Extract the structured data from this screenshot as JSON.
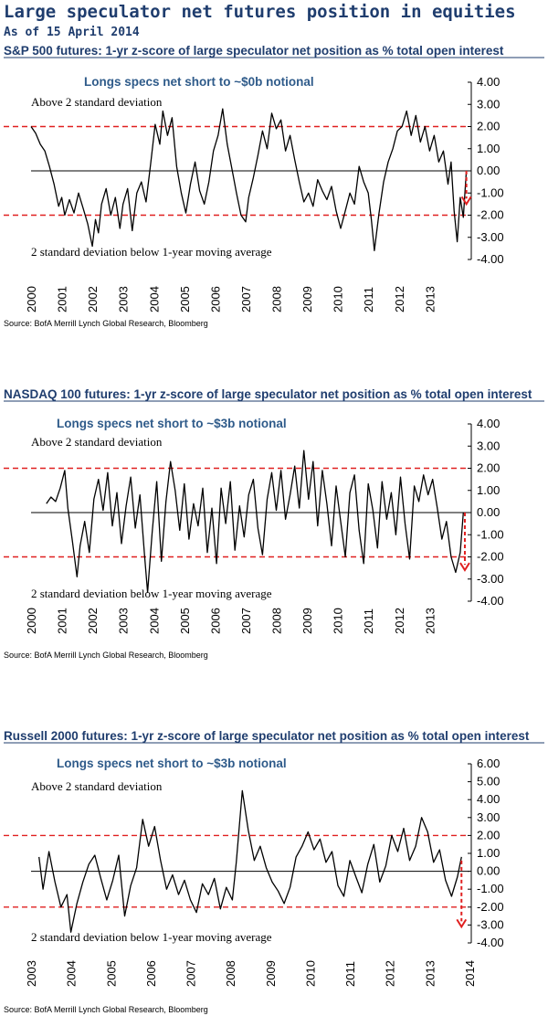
{
  "header": {
    "title": "Large speculator net futures position in equities",
    "subtitle": "As of 15 April 2014"
  },
  "chart_data": [
    {
      "type": "line",
      "title": "S&P 500 futures: 1-yr z-score of large speculator net position as % total open interest",
      "callout": "Longs specs net short to ~$0b notional",
      "annotation_top": "Above 2 standard deviation",
      "annotation_bottom": "2 standard deviation below 1-year moving average",
      "source": "Source: BofA Merrill Lynch Global Research, Bloomberg",
      "ylim": [
        -4,
        4
      ],
      "yticks": [
        "4.00",
        "3.00",
        "2.00",
        "1.00",
        "0.00",
        "-1.00",
        "-2.00",
        "-3.00",
        "-4.00"
      ],
      "xlim": [
        2000,
        2014.3
      ],
      "xticks": [
        "2000",
        "2001",
        "2002",
        "2003",
        "2004",
        "2005",
        "2006",
        "2007",
        "2008",
        "2009",
        "2010",
        "2011",
        "2012",
        "2013"
      ],
      "threshold_lines": [
        2,
        -2
      ],
      "arrow": {
        "from": [
          2014.2,
          0
        ],
        "to": [
          2014.2,
          -1.5
        ]
      },
      "series": [
        {
          "x": [
            2000.0,
            2000.15,
            2000.3,
            2000.45,
            2000.6,
            2000.75,
            2000.9,
            2001.0,
            2001.1,
            2001.25,
            2001.4,
            2001.55,
            2001.7,
            2001.85,
            2002.0,
            2002.1,
            2002.2,
            2002.3,
            2002.45,
            2002.6,
            2002.75,
            2002.9,
            2003.0,
            2003.15,
            2003.3,
            2003.45,
            2003.6,
            2003.75,
            2003.9,
            2004.05,
            2004.2,
            2004.3,
            2004.45,
            2004.6,
            2004.75,
            2004.9,
            2005.05,
            2005.2,
            2005.35,
            2005.5,
            2005.65,
            2005.8,
            2005.95,
            2006.1,
            2006.25,
            2006.4,
            2006.55,
            2006.7,
            2006.85,
            2007.0,
            2007.1,
            2007.25,
            2007.4,
            2007.55,
            2007.7,
            2007.85,
            2008.0,
            2008.15,
            2008.3,
            2008.45,
            2008.6,
            2008.75,
            2008.9,
            2009.05,
            2009.2,
            2009.35,
            2009.5,
            2009.65,
            2009.8,
            2009.95,
            2010.1,
            2010.25,
            2010.4,
            2010.55,
            2010.7,
            2010.85,
            2011.0,
            2011.1,
            2011.2,
            2011.35,
            2011.5,
            2011.65,
            2011.8,
            2011.95,
            2012.1,
            2012.25,
            2012.4,
            2012.55,
            2012.7,
            2012.85,
            2013.0,
            2013.15,
            2013.3,
            2013.45,
            2013.6,
            2013.7,
            2013.8,
            2013.9,
            2014.0,
            2014.1,
            2014.2
          ],
          "y": [
            2.0,
            1.7,
            1.2,
            0.9,
            0.2,
            -0.6,
            -1.6,
            -1.2,
            -2.0,
            -1.3,
            -1.9,
            -1.0,
            -1.7,
            -2.4,
            -3.4,
            -2.2,
            -2.8,
            -1.5,
            -0.8,
            -2.0,
            -1.2,
            -2.6,
            -1.5,
            -0.8,
            -2.7,
            -1.0,
            -0.5,
            -1.4,
            0.3,
            2.1,
            1.2,
            2.7,
            1.6,
            2.4,
            0.2,
            -1.0,
            -1.9,
            -0.6,
            0.4,
            -0.9,
            -1.5,
            -0.5,
            0.9,
            1.6,
            2.8,
            1.2,
            0.1,
            -1.0,
            -2.0,
            -2.3,
            -1.2,
            -0.3,
            0.7,
            1.8,
            1.0,
            2.6,
            1.9,
            2.3,
            0.9,
            1.6,
            0.5,
            -0.5,
            -1.4,
            -1.0,
            -1.6,
            -0.4,
            -0.9,
            -1.3,
            -0.7,
            -1.8,
            -2.6,
            -1.8,
            -1.0,
            -1.5,
            0.2,
            -0.5,
            -1.0,
            -2.2,
            -3.6,
            -1.9,
            -0.5,
            0.4,
            1.0,
            1.8,
            2.0,
            2.7,
            1.6,
            2.5,
            1.3,
            2.0,
            0.9,
            1.6,
            0.4,
            0.9,
            -0.6,
            0.4,
            -1.8,
            -3.2,
            -1.2,
            -2.1,
            0.0
          ]
        }
      ]
    },
    {
      "type": "line",
      "title": "NASDAQ 100 futures: 1-yr z-score of large speculator net position as % total open interest",
      "callout": "Longs specs net short to ~$3b notional",
      "annotation_top": "Above 2 standard deviation",
      "annotation_bottom": "2 standard deviation below 1-year moving average",
      "source": "Source: BofA Merrill Lynch Global Research, Bloomberg",
      "ylim": [
        -4,
        4
      ],
      "yticks": [
        "4.00",
        "3.00",
        "2.00",
        "1.00",
        "0.00",
        "-1.00",
        "-2.00",
        "-3.00",
        "-4.00"
      ],
      "xlim": [
        2000,
        2014.3
      ],
      "xticks": [
        "2000",
        "2001",
        "2002",
        "2003",
        "2004",
        "2005",
        "2006",
        "2007",
        "2008",
        "2009",
        "2010",
        "2011",
        "2012",
        "2013"
      ],
      "threshold_lines": [
        2,
        -2
      ],
      "arrow": {
        "from": [
          2014.15,
          0
        ],
        "to": [
          2014.15,
          -2.6
        ]
      },
      "series": [
        {
          "x": [
            2000.5,
            2000.65,
            2000.8,
            2000.95,
            2001.1,
            2001.2,
            2001.35,
            2001.5,
            2001.6,
            2001.75,
            2001.9,
            2002.05,
            2002.2,
            2002.35,
            2002.5,
            2002.65,
            2002.8,
            2002.95,
            2003.1,
            2003.25,
            2003.4,
            2003.55,
            2003.7,
            2003.8,
            2003.95,
            2004.1,
            2004.25,
            2004.4,
            2004.55,
            2004.7,
            2004.85,
            2005.0,
            2005.15,
            2005.3,
            2005.45,
            2005.6,
            2005.75,
            2005.9,
            2006.05,
            2006.2,
            2006.35,
            2006.5,
            2006.65,
            2006.8,
            2006.95,
            2007.1,
            2007.25,
            2007.4,
            2007.55,
            2007.7,
            2007.85,
            2008.0,
            2008.15,
            2008.3,
            2008.45,
            2008.6,
            2008.75,
            2008.9,
            2009.05,
            2009.2,
            2009.35,
            2009.5,
            2009.65,
            2009.8,
            2009.95,
            2010.1,
            2010.25,
            2010.4,
            2010.55,
            2010.7,
            2010.85,
            2011.0,
            2011.15,
            2011.3,
            2011.45,
            2011.6,
            2011.75,
            2011.9,
            2012.05,
            2012.2,
            2012.35,
            2012.5,
            2012.65,
            2012.8,
            2012.95,
            2013.1,
            2013.25,
            2013.4,
            2013.55,
            2013.7,
            2013.85,
            2014.0,
            2014.1
          ],
          "y": [
            0.4,
            0.7,
            0.5,
            1.1,
            1.9,
            0.2,
            -1.3,
            -2.9,
            -1.5,
            -0.4,
            -1.8,
            0.6,
            1.5,
            0.1,
            1.8,
            -0.6,
            0.9,
            -1.4,
            0.3,
            1.6,
            -0.7,
            0.8,
            -1.9,
            -3.6,
            -0.9,
            1.4,
            -2.2,
            0.5,
            2.3,
            1.0,
            -0.8,
            1.3,
            -1.2,
            0.4,
            -0.6,
            1.1,
            -1.8,
            0.2,
            -2.3,
            1.1,
            -0.5,
            1.4,
            -1.7,
            0.3,
            -1.1,
            0.8,
            1.5,
            -0.7,
            -1.9,
            0.6,
            1.8,
            0.1,
            1.9,
            -0.3,
            0.8,
            2.1,
            0.2,
            2.8,
            0.6,
            2.3,
            -0.6,
            1.9,
            0.4,
            -1.5,
            1.2,
            -0.4,
            -2.0,
            0.9,
            1.7,
            -0.8,
            -2.3,
            1.3,
            0.1,
            -1.6,
            1.4,
            -0.3,
            0.9,
            -1.0,
            1.6,
            -0.5,
            -2.1,
            1.2,
            0.5,
            1.7,
            0.8,
            1.5,
            0.2,
            -1.2,
            -0.4,
            -2.0,
            -2.7,
            -1.8,
            0.0
          ]
        }
      ]
    },
    {
      "type": "line",
      "title": "Russell 2000 futures: 1-yr z-score of large speculator net position as % total open interest",
      "callout": "Longs specs net short to ~$3b notional",
      "annotation_top": "Above 2 standard deviation",
      "annotation_bottom": "2 standard deviation below 1-year moving average",
      "source": "Source: BofA Merrill Lynch Global Research, Bloomberg",
      "ylim": [
        -4,
        6
      ],
      "yticks": [
        "6.00",
        "5.00",
        "4.00",
        "3.00",
        "2.00",
        "1.00",
        "0.00",
        "-1.00",
        "-2.00",
        "-3.00",
        "-4.00"
      ],
      "xlim": [
        2003,
        2014
      ],
      "xticks": [
        "2003",
        "2004",
        "2005",
        "2006",
        "2007",
        "2008",
        "2009",
        "2010",
        "2011",
        "2012",
        "2013",
        "2014"
      ],
      "threshold_lines": [
        2,
        -2
      ],
      "arrow": {
        "from": [
          2013.8,
          0.6
        ],
        "to": [
          2013.8,
          -3.1
        ]
      },
      "series": [
        {
          "x": [
            2003.2,
            2003.3,
            2003.45,
            2003.6,
            2003.75,
            2003.9,
            2004.0,
            2004.15,
            2004.3,
            2004.45,
            2004.6,
            2004.75,
            2004.9,
            2005.05,
            2005.2,
            2005.35,
            2005.5,
            2005.65,
            2005.8,
            2005.95,
            2006.1,
            2006.25,
            2006.4,
            2006.55,
            2006.7,
            2006.85,
            2007.0,
            2007.15,
            2007.3,
            2007.45,
            2007.6,
            2007.75,
            2007.9,
            2008.05,
            2008.15,
            2008.3,
            2008.45,
            2008.6,
            2008.75,
            2008.9,
            2009.05,
            2009.2,
            2009.35,
            2009.5,
            2009.65,
            2009.8,
            2009.95,
            2010.1,
            2010.25,
            2010.4,
            2010.55,
            2010.7,
            2010.85,
            2011.0,
            2011.15,
            2011.3,
            2011.45,
            2011.6,
            2011.75,
            2011.9,
            2012.05,
            2012.2,
            2012.35,
            2012.5,
            2012.65,
            2012.8,
            2012.95,
            2013.1,
            2013.25,
            2013.4,
            2013.55,
            2013.7,
            2013.8
          ],
          "y": [
            0.8,
            -1.0,
            1.1,
            -0.6,
            -2.0,
            -1.3,
            -3.4,
            -1.8,
            -0.6,
            0.4,
            0.9,
            -0.4,
            -1.6,
            -0.5,
            0.9,
            -2.5,
            -0.8,
            0.2,
            2.9,
            1.4,
            2.5,
            0.6,
            -1.0,
            -0.2,
            -1.3,
            -0.5,
            -1.6,
            -2.3,
            -0.7,
            -1.3,
            -0.4,
            -2.1,
            -0.9,
            -1.6,
            0.5,
            4.5,
            2.3,
            0.6,
            1.4,
            0.2,
            -0.6,
            -1.1,
            -1.8,
            -0.9,
            0.8,
            1.4,
            2.2,
            1.2,
            1.8,
            0.5,
            1.1,
            -0.8,
            -1.4,
            0.6,
            -0.3,
            -1.2,
            0.4,
            1.5,
            -0.6,
            0.3,
            2.0,
            1.1,
            2.4,
            0.6,
            1.4,
            3.0,
            2.2,
            0.5,
            1.2,
            -0.5,
            -1.4,
            -0.3,
            0.8
          ]
        }
      ]
    }
  ]
}
